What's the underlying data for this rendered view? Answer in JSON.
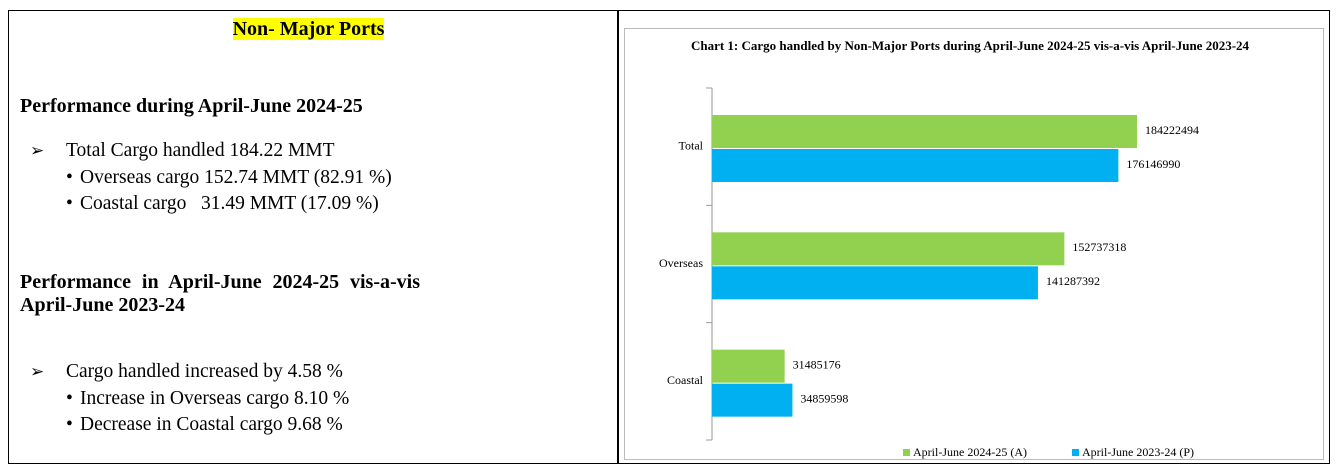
{
  "left": {
    "title": "Non- Major Ports",
    "sections": [
      {
        "heading": "Performance during April-June 2024-25",
        "item": "Total Cargo handled 184.22 MMT",
        "subitems": [
          "Overseas cargo 152.74 MMT (82.91 %)",
          "Coastal cargo   31.49 MMT (17.09 %)"
        ]
      },
      {
        "heading": "Performance in April-June 2024-25 vis-a-vis April-June 2023-24",
        "item": "Cargo handled increased by 4.58 %",
        "subitems": [
          "Increase in Overseas cargo 8.10 %",
          "Decrease in Coastal cargo 9.68 %"
        ]
      }
    ]
  },
  "chart_data": {
    "type": "barh",
    "title": "Chart 1: Cargo handled by Non-Major Ports during April-June 2024-25 vis-a-vis April-June 2023-24",
    "categories": [
      "Total",
      "Overseas",
      "Coastal"
    ],
    "series": [
      {
        "name": "April-June 2024-25 (A)",
        "color": "#92d050",
        "values": [
          184222494,
          152737318,
          31485176
        ]
      },
      {
        "name": "April-June 2023-24 (P)",
        "color": "#00b0f0",
        "values": [
          176146990,
          141287392,
          34859598
        ]
      }
    ],
    "legend": "bottom"
  }
}
